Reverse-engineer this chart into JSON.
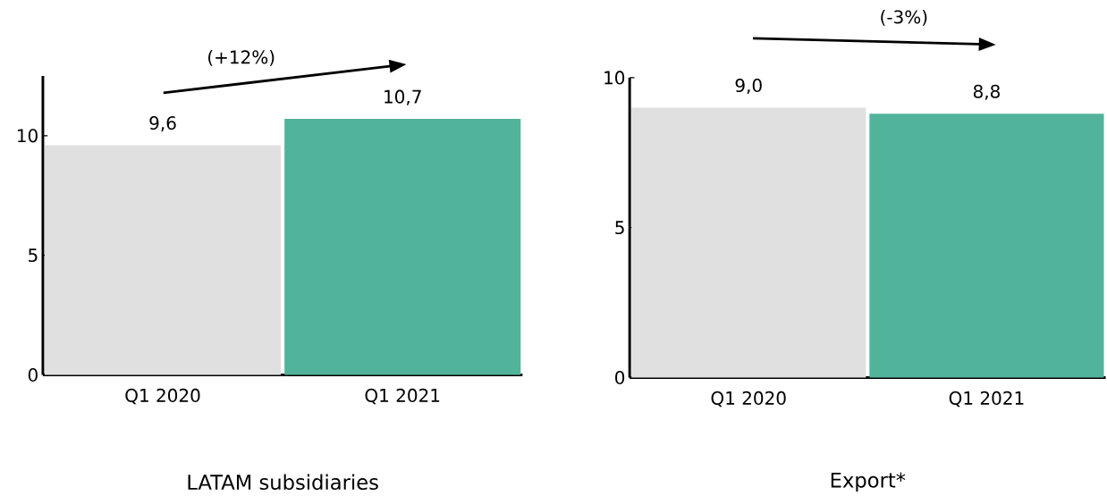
{
  "chart_data": [
    {
      "type": "bar",
      "xlabel": "LATAM subsidiaries",
      "categories": [
        "Q1 2020",
        "Q1 2021"
      ],
      "values": [
        9.6,
        10.7
      ],
      "colors": [
        "#e0e0e0",
        "#52b39b"
      ],
      "value_labels": [
        "9,6",
        "10,7"
      ],
      "ylim": [
        0,
        12.5
      ],
      "yticks": [
        0,
        5,
        10
      ],
      "annotations": [
        "(+12%)"
      ]
    },
    {
      "type": "bar",
      "xlabel": "Export*",
      "categories": [
        "Q1 2020",
        "Q1 2021"
      ],
      "values": [
        9.0,
        8.8
      ],
      "colors": [
        "#e0e0e0",
        "#52b39b"
      ],
      "value_labels": [
        "9,0",
        "8,8"
      ],
      "ylim": [
        0,
        10
      ],
      "yticks": [
        0,
        5,
        10
      ],
      "annotations": [
        "(-3%)"
      ]
    }
  ]
}
